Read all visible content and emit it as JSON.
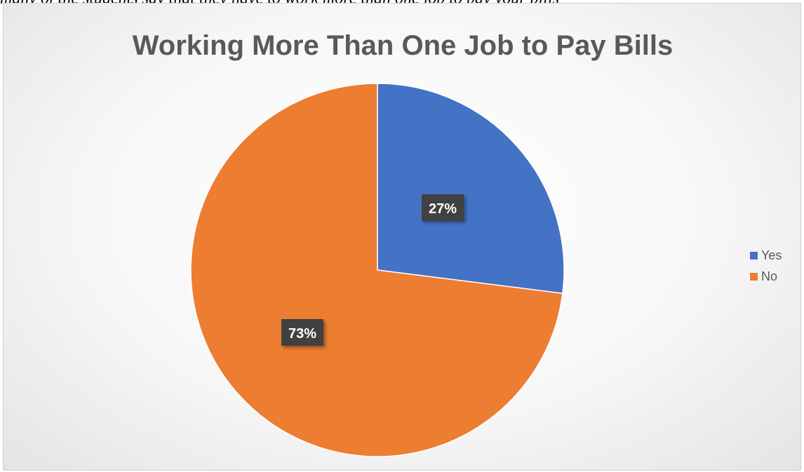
{
  "document": {
    "text": "many of the students say that they have to work more than one job to pay your bills"
  },
  "chart_data": {
    "type": "pie",
    "title": "Working More Than One Job to Pay Bills",
    "categories": [
      "Yes",
      "No"
    ],
    "values": [
      27,
      73
    ],
    "data_labels": [
      "27%",
      "73%"
    ],
    "colors": [
      "#4472c4",
      "#ed7d31"
    ],
    "legend_position": "right"
  }
}
